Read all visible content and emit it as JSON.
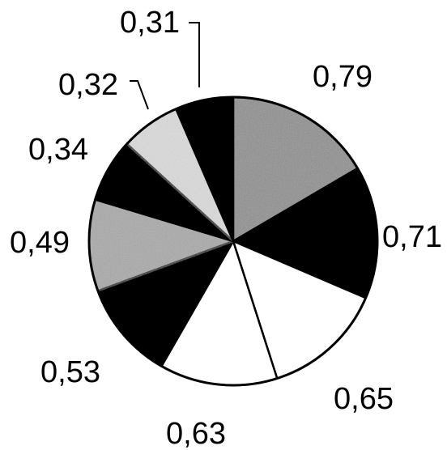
{
  "chart_data": {
    "type": "pie",
    "title": "",
    "start_position": "top",
    "direction": "clockwise",
    "slices": [
      {
        "label": "0,79",
        "value": 0.79,
        "color": "#8e8e8e",
        "texture": "speckled"
      },
      {
        "label": "0,71",
        "value": 0.71,
        "color": "#000000",
        "texture": "solid"
      },
      {
        "label": "0,65",
        "value": 0.65,
        "color": "#ffffff",
        "texture": "solid"
      },
      {
        "label": "0,63",
        "value": 0.63,
        "color": "#ffffff",
        "texture": "solid"
      },
      {
        "label": "0,53",
        "value": 0.53,
        "color": "#000000",
        "texture": "solid"
      },
      {
        "label": "0,49",
        "value": 0.49,
        "color": "#a9a9a9",
        "texture": "speckled"
      },
      {
        "label": "0,34",
        "value": 0.34,
        "color": "#000000",
        "texture": "solid"
      },
      {
        "label": "0,32",
        "value": 0.32,
        "color": "#dcdcdc",
        "texture": "speckled"
      },
      {
        "label": "0,31",
        "value": 0.31,
        "color": "#000000",
        "texture": "solid"
      }
    ],
    "outline_color": "#000000",
    "legend": "none"
  }
}
